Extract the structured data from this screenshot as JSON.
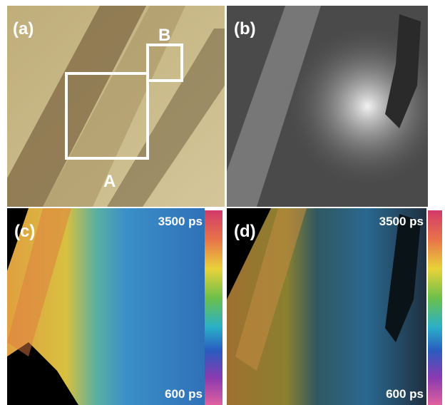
{
  "panels": [
    {
      "label": "(a)",
      "regions": [
        "A",
        "B"
      ]
    },
    {
      "label": "(b)"
    },
    {
      "label": "(c)",
      "scale_max": "3500 ps",
      "scale_min": "600 ps"
    },
    {
      "label": "(d)",
      "scale_max": "3500 ps",
      "scale_min": "600 ps"
    }
  ]
}
